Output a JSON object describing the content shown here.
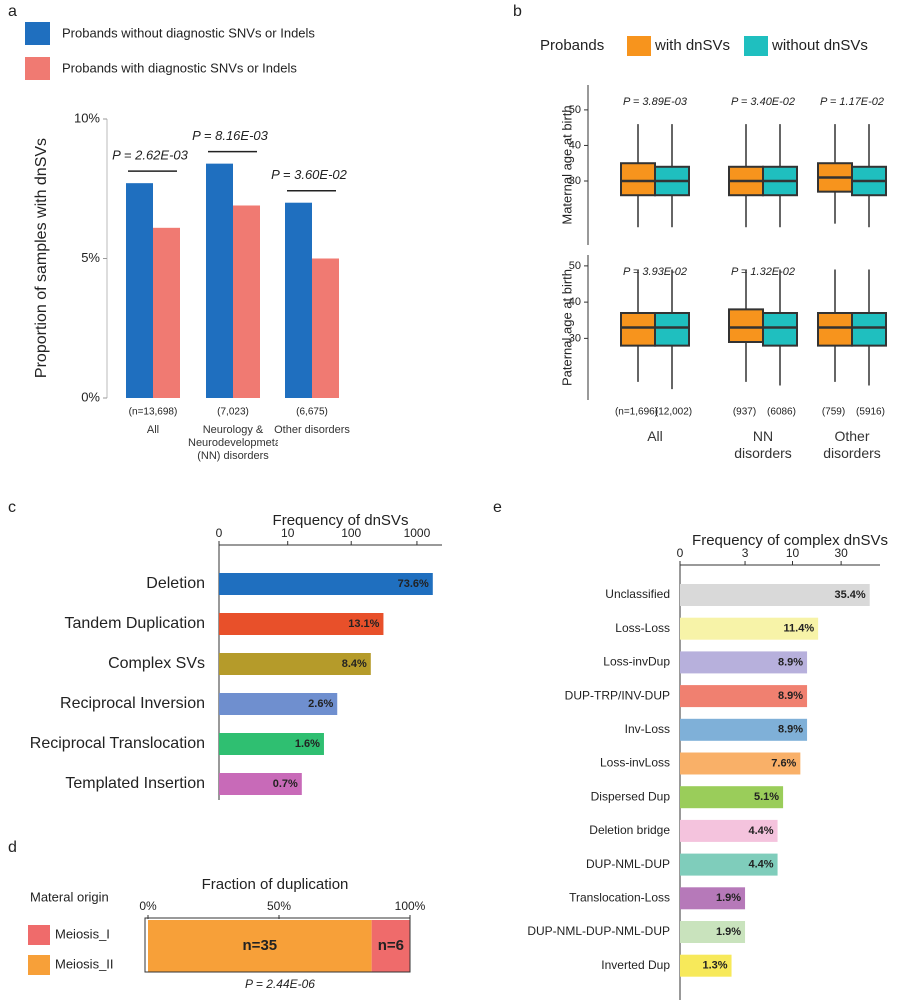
{
  "chart_data": [
    {
      "panel": "a",
      "type": "bar",
      "ylabel": "Proportion of samples with dnSVs",
      "categories": [
        "All",
        "Neurology & Neurodevelopmetal (NN) disorders",
        "Other disorders"
      ],
      "category_notes": [
        "(n=13,698)",
        "(7,023)",
        "(6,675)"
      ],
      "series": [
        {
          "name": "Probands without diagnostic SNVs or Indels",
          "color": "#1f6fbf",
          "values": [
            7.7,
            8.4,
            7.0
          ]
        },
        {
          "name": "Probands with diagnostic SNVs or Indels",
          "color": "#f07a72",
          "values": [
            6.1,
            6.9,
            5.0
          ]
        }
      ],
      "annotations": [
        "P = 2.62E-03",
        "P = 8.16E-03",
        "P = 3.60E-02"
      ],
      "ylim": [
        0,
        10
      ],
      "yticks": [
        {
          "value": 0,
          "label": "0%"
        },
        {
          "value": 5,
          "label": "5%"
        },
        {
          "value": 10,
          "label": "10%"
        }
      ]
    },
    {
      "panel": "b",
      "type": "box",
      "legend_title": "Probands",
      "series": [
        {
          "name": "with dnSVs",
          "color": "#f7941d"
        },
        {
          "name": "without dnSVs",
          "color": "#1fbfbf"
        }
      ],
      "categories": [
        "All",
        "NN disorders",
        "Other disorders"
      ],
      "category_notes": [
        [
          "(n=1,696)",
          "(12,002)"
        ],
        [
          "(937)",
          "(6086)"
        ],
        [
          "(759)",
          "(5916)"
        ]
      ],
      "panels": [
        {
          "ylabel": "Maternal age at birth",
          "ylim": [
            12,
            57
          ],
          "yticks": [
            30,
            40,
            50
          ],
          "annotations": [
            "P = 3.89E-03",
            "P = 3.40E-02",
            "P = 1.17E-02"
          ],
          "boxes": [
            [
              {
                "whislo": 17,
                "q1": 26,
                "med": 30,
                "q3": 35,
                "whishi": 46
              },
              {
                "whislo": 17,
                "q1": 26,
                "med": 30,
                "q3": 34,
                "whishi": 46
              }
            ],
            [
              {
                "whislo": 17,
                "q1": 26,
                "med": 30,
                "q3": 34,
                "whishi": 46
              },
              {
                "whislo": 17,
                "q1": 26,
                "med": 30,
                "q3": 34,
                "whishi": 46
              }
            ],
            [
              {
                "whislo": 18,
                "q1": 27,
                "med": 31,
                "q3": 35,
                "whishi": 46
              },
              {
                "whislo": 17,
                "q1": 26,
                "med": 30,
                "q3": 34,
                "whishi": 46
              }
            ]
          ]
        },
        {
          "ylabel": "Paternal age at birth",
          "ylim": [
            13,
            53
          ],
          "yticks": [
            30,
            40,
            50
          ],
          "annotations": [
            "P = 3.93E-02",
            "P = 1.32E-02"
          ],
          "boxes": [
            [
              {
                "whislo": 18,
                "q1": 28,
                "med": 33,
                "q3": 37,
                "whishi": 49
              },
              {
                "whislo": 16,
                "q1": 28,
                "med": 33,
                "q3": 37,
                "whishi": 49
              }
            ],
            [
              {
                "whislo": 18,
                "q1": 29,
                "med": 33,
                "q3": 38,
                "whishi": 49
              },
              {
                "whislo": 17,
                "q1": 28,
                "med": 33,
                "q3": 37,
                "whishi": 49
              }
            ],
            [
              {
                "whislo": 18,
                "q1": 28,
                "med": 33,
                "q3": 37,
                "whishi": 49
              },
              {
                "whislo": 17,
                "q1": 28,
                "med": 33,
                "q3": 37,
                "whishi": 49
              }
            ]
          ]
        }
      ]
    },
    {
      "panel": "c",
      "type": "hbar",
      "title": "Frequency of dnSVs",
      "categories": [
        "Deletion",
        "Tandem Duplication",
        "Complex SVs",
        "Reciprocal Inversion",
        "Reciprocal Translocation",
        "Templated Insertion"
      ],
      "values": [
        1740,
        310,
        199,
        61,
        38,
        17
      ],
      "bar_labels": [
        "73.6%",
        "13.1%",
        "8.4%",
        "2.6%",
        "1.6%",
        "0.7%"
      ],
      "colors": [
        "#1f6fbf",
        "#e8502a",
        "#b59b2a",
        "#6f8fcf",
        "#2fbf71",
        "#c86ab8"
      ],
      "xscale": "symlog",
      "xlim": [
        0,
        2400
      ],
      "xticks": [
        0,
        10,
        100,
        1000
      ]
    },
    {
      "panel": "d",
      "type": "stacked_hbar",
      "title": "Fraction of duplication",
      "legend_title": "Materal origin",
      "series": [
        {
          "name": "Meiosis_I",
          "color": "#ef6b6b",
          "values": [
            6
          ],
          "value_labels": [
            "n=6"
          ]
        },
        {
          "name": "Meiosis_II",
          "color": "#f7a039",
          "values": [
            35
          ],
          "value_labels": [
            "n=35"
          ]
        }
      ],
      "annotations": [
        "P = 2.44E-06"
      ],
      "xlim": [
        0,
        100
      ],
      "xticks": [
        {
          "value": 0,
          "label": "0%"
        },
        {
          "value": 50,
          "label": "50%"
        },
        {
          "value": 100,
          "label": "100%"
        }
      ]
    },
    {
      "panel": "e",
      "type": "hbar",
      "title": "Frequency of complex dnSVs",
      "categories": [
        "Unclassified",
        "Loss-Loss",
        "Loss-invDup",
        "DUP-TRP/INV-DUP",
        "Inv-Loss",
        "Loss-invLoss",
        "Dispersed Dup",
        "Deletion bridge",
        "DUP-NML-DUP",
        "Translocation-Loss",
        "DUP-NML-DUP-NML-DUP",
        "Inverted Dup"
      ],
      "values": [
        56,
        18,
        14,
        14,
        14,
        12,
        8,
        7,
        7,
        3,
        3,
        2
      ],
      "bar_labels": [
        "35.4%",
        "11.4%",
        "8.9%",
        "8.9%",
        "8.9%",
        "7.6%",
        "5.1%",
        "4.4%",
        "4.4%",
        "1.9%",
        "1.9%",
        "1.3%"
      ],
      "colors": [
        "#d9d9d9",
        "#f7f3a8",
        "#b7b0dc",
        "#f08070",
        "#7fb0d8",
        "#f9b068",
        "#9acd5a",
        "#f4c3dd",
        "#7fcdbb",
        "#b679b9",
        "#c9e3bd",
        "#f7e95a"
      ],
      "xscale": "symlog",
      "xlim": [
        0,
        70
      ],
      "xticks": [
        0,
        3,
        10,
        30
      ]
    }
  ]
}
